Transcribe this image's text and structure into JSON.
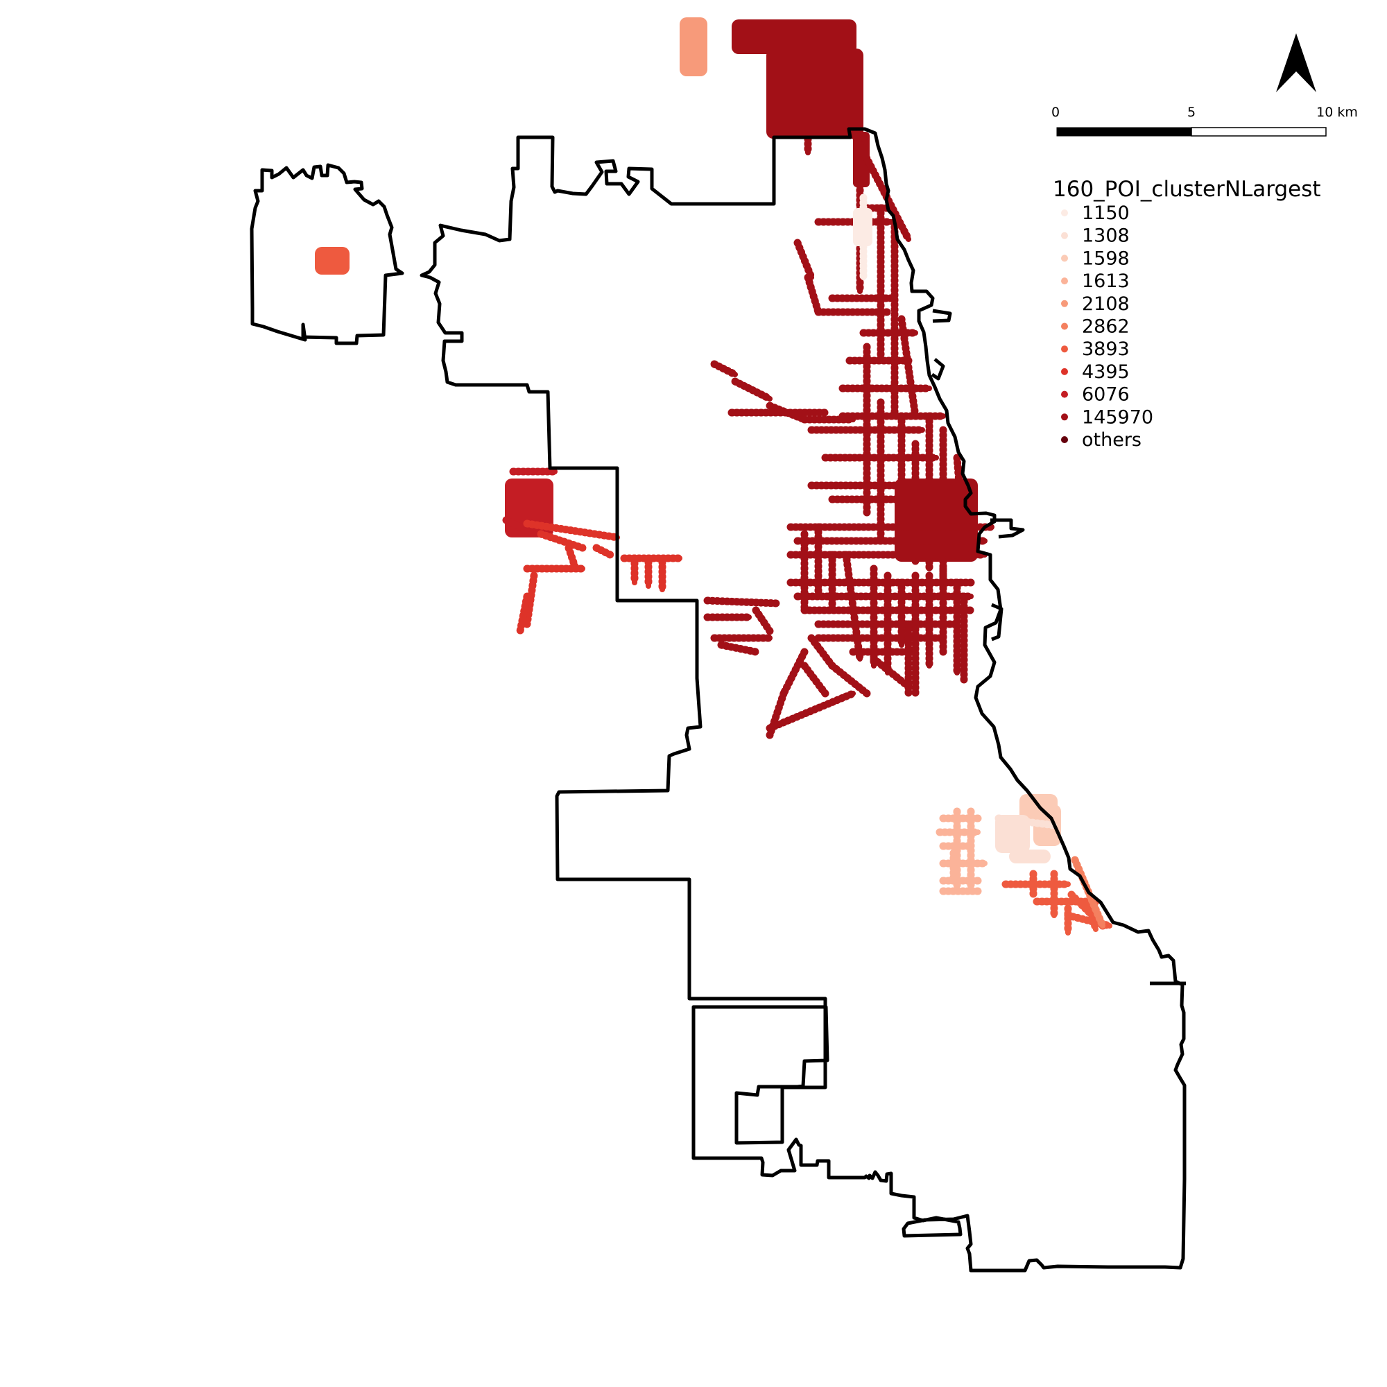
{
  "north_arrow": {
    "icon": "north-arrow-icon"
  },
  "scale_bar": {
    "labels": [
      "0",
      "5",
      "10 km"
    ],
    "fill_colors": [
      "#000000",
      "#ffffff"
    ]
  },
  "legend": {
    "title": "160_POI_clusterNLargest",
    "items": [
      {
        "label": "1150",
        "color": "#fcebe4"
      },
      {
        "label": "1308",
        "color": "#fbe0d5"
      },
      {
        "label": "1598",
        "color": "#fbcbb6"
      },
      {
        "label": "1613",
        "color": "#fbb399"
      },
      {
        "label": "2108",
        "color": "#f79a7a"
      },
      {
        "label": "2862",
        "color": "#f4805f"
      },
      {
        "label": "3893",
        "color": "#ee5a3f"
      },
      {
        "label": "4395",
        "color": "#de3329"
      },
      {
        "label": "6076",
        "color": "#c41d24"
      },
      {
        "label": "145970",
        "color": "#a21017"
      },
      {
        "label": "others",
        "color": "#65000c"
      }
    ]
  },
  "map": {
    "boundary_color": "#000000",
    "cluster_layers": [
      "145970",
      "6076",
      "4395",
      "3893",
      "2862",
      "2108",
      "1613",
      "1598",
      "1308",
      "1150"
    ]
  }
}
